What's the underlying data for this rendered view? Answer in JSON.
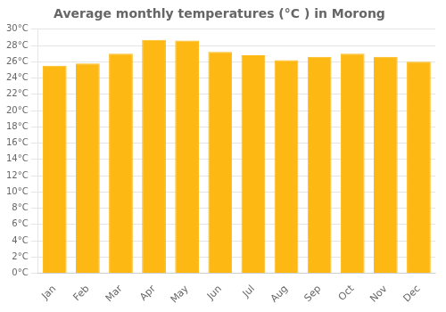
{
  "chart_data": {
    "type": "bar",
    "title": "Average monthly temperatures (°C ) in Morong",
    "categories": [
      "Jan",
      "Feb",
      "Mar",
      "Apr",
      "May",
      "Jun",
      "Jul",
      "Aug",
      "Sep",
      "Oct",
      "Nov",
      "Dec"
    ],
    "values": [
      25.5,
      25.8,
      27.0,
      28.7,
      28.6,
      27.2,
      26.8,
      26.2,
      26.6,
      27.0,
      26.6,
      26.0
    ],
    "color": "#FDB813",
    "ylim": [
      0,
      30
    ],
    "yticks": [
      {
        "value": 0,
        "label": "0°C"
      },
      {
        "value": 2,
        "label": "2°C"
      },
      {
        "value": 4,
        "label": "4°C"
      },
      {
        "value": 6,
        "label": "6°C"
      },
      {
        "value": 8,
        "label": "8°C"
      },
      {
        "value": 10,
        "label": "10°C"
      },
      {
        "value": 12,
        "label": "12°C"
      },
      {
        "value": 14,
        "label": "14°C"
      },
      {
        "value": 16,
        "label": "16°C"
      },
      {
        "value": 18,
        "label": "18°C"
      },
      {
        "value": 20,
        "label": "20°C"
      },
      {
        "value": 22,
        "label": "22°C"
      },
      {
        "value": 24,
        "label": "24°C"
      },
      {
        "value": 26,
        "label": "26°C"
      },
      {
        "value": 28,
        "label": "28°C"
      },
      {
        "value": 30,
        "label": "30°C"
      }
    ],
    "grid": true
  }
}
